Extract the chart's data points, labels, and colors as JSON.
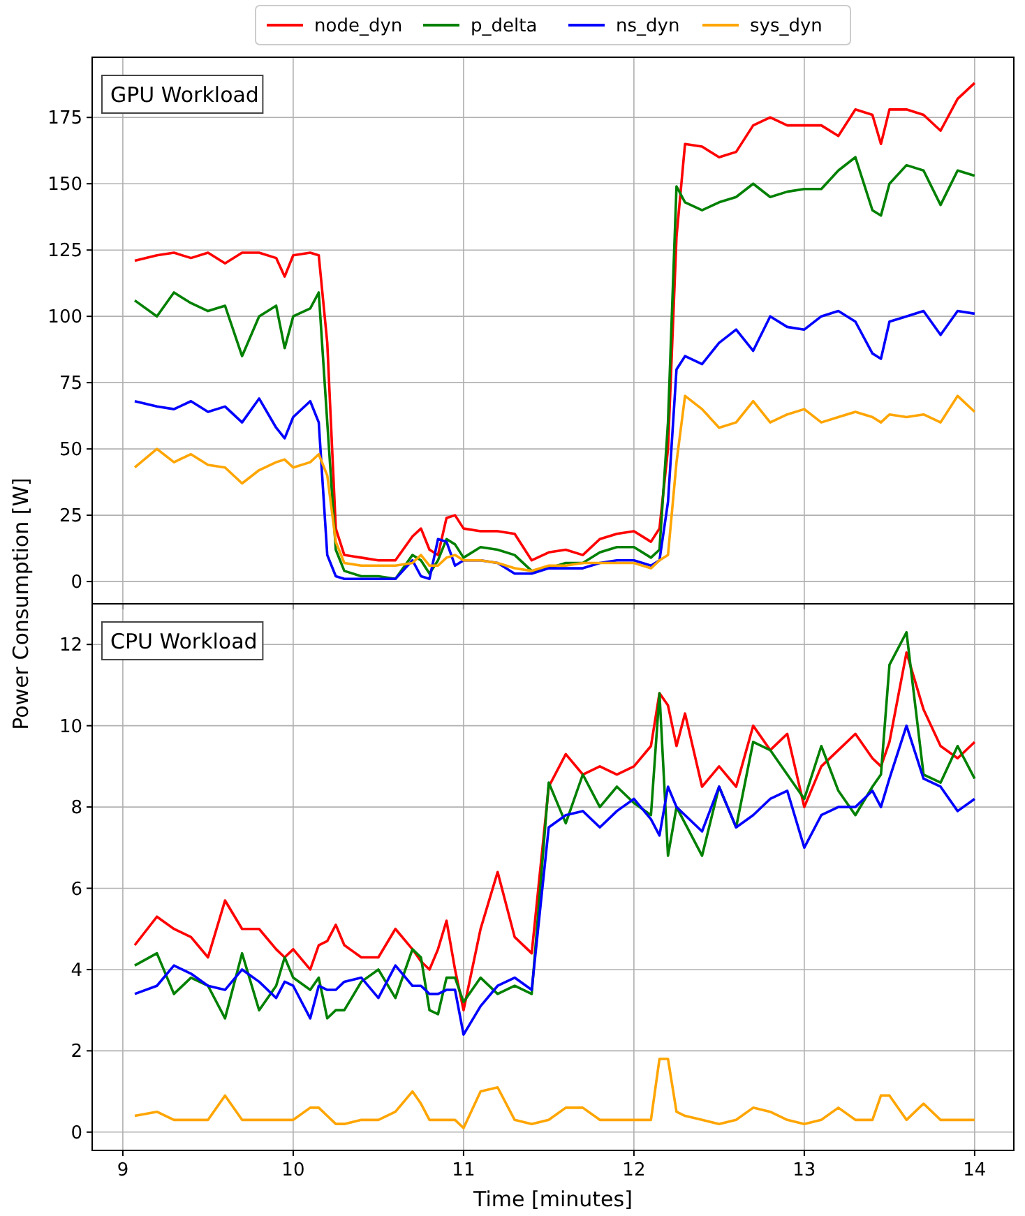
{
  "chart_data": [
    {
      "type": "line",
      "title": "GPU Workload",
      "ylabel": "Power Consumption [W]",
      "legend": "top",
      "grid": true,
      "tick_labels": "y",
      "line_style": "solid",
      "marker": "none",
      "x": [
        9.07,
        9.2,
        9.3,
        9.4,
        9.5,
        9.6,
        9.7,
        9.8,
        9.9,
        9.95,
        10.0,
        10.1,
        10.15,
        10.2,
        10.25,
        10.3,
        10.4,
        10.5,
        10.6,
        10.7,
        10.75,
        10.8,
        10.85,
        10.9,
        10.95,
        11.0,
        11.1,
        11.2,
        11.3,
        11.4,
        11.5,
        11.6,
        11.7,
        11.8,
        11.9,
        12.0,
        12.1,
        12.15,
        12.2,
        12.25,
        12.3,
        12.4,
        12.5,
        12.6,
        12.7,
        12.8,
        12.9,
        13.0,
        13.1,
        13.2,
        13.3,
        13.4,
        13.45,
        13.5,
        13.6,
        13.7,
        13.8,
        13.9,
        14.0
      ],
      "xlim": [
        8.82,
        14.23
      ],
      "xticks": [
        9,
        10,
        11,
        12,
        13,
        14
      ],
      "ylim": [
        -8.4,
        197.7
      ],
      "yticks": [
        0,
        25,
        50,
        75,
        100,
        125,
        150,
        175
      ],
      "series": [
        {
          "name": "node_dyn",
          "color": "#ff0000",
          "values": [
            121,
            123,
            124,
            122,
            124,
            120,
            124,
            124,
            122,
            115,
            123,
            124,
            123,
            90,
            20,
            10,
            9,
            8,
            8,
            17,
            20,
            12,
            10,
            24,
            25,
            20,
            19,
            19,
            18,
            8,
            11,
            12,
            10,
            16,
            18,
            19,
            15,
            20,
            50,
            130,
            165,
            164,
            160,
            162,
            172,
            175,
            172,
            172,
            172,
            168,
            178,
            176,
            165,
            178,
            178,
            176,
            170,
            182,
            188
          ]
        },
        {
          "name": "p_delta",
          "color": "#008000",
          "values": [
            106,
            100,
            109,
            105,
            102,
            104,
            85,
            100,
            104,
            88,
            100,
            103,
            109,
            60,
            12,
            4,
            2,
            2,
            1,
            10,
            8,
            3,
            8,
            16,
            14,
            9,
            13,
            12,
            10,
            4,
            5,
            7,
            7,
            11,
            13,
            13,
            9,
            12,
            60,
            149,
            143,
            140,
            143,
            145,
            150,
            145,
            147,
            148,
            148,
            155,
            160,
            140,
            138,
            150,
            157,
            155,
            142,
            155,
            153
          ]
        },
        {
          "name": "ns_dyn",
          "color": "#0000ff",
          "values": [
            68,
            66,
            65,
            68,
            64,
            66,
            60,
            69,
            58,
            54,
            62,
            68,
            60,
            10,
            2,
            1,
            1,
            1,
            1,
            8,
            2,
            1,
            16,
            15,
            6,
            8,
            8,
            7,
            3,
            3,
            5,
            5,
            5,
            7,
            8,
            8,
            6,
            8,
            30,
            80,
            85,
            82,
            90,
            95,
            87,
            100,
            96,
            95,
            100,
            102,
            98,
            86,
            84,
            98,
            100,
            102,
            93,
            102,
            101
          ]
        },
        {
          "name": "sys_dyn",
          "color": "#ffa500",
          "values": [
            43,
            50,
            45,
            48,
            44,
            43,
            37,
            42,
            45,
            46,
            43,
            45,
            48,
            40,
            15,
            7,
            6,
            6,
            6,
            7,
            10,
            6,
            6,
            9,
            10,
            8,
            8,
            7,
            5,
            4,
            6,
            6,
            7,
            7,
            7,
            7,
            5,
            8,
            10,
            45,
            70,
            65,
            58,
            60,
            68,
            60,
            63,
            65,
            60,
            62,
            64,
            62,
            60,
            63,
            62,
            63,
            60,
            70,
            64
          ]
        }
      ]
    },
    {
      "type": "line",
      "title": "CPU Workload",
      "xlabel": "Time [minutes]",
      "grid": true,
      "line_style": "solid",
      "marker": "none",
      "x": [
        9.07,
        9.2,
        9.3,
        9.4,
        9.5,
        9.6,
        9.7,
        9.8,
        9.9,
        9.95,
        10.0,
        10.1,
        10.15,
        10.2,
        10.25,
        10.3,
        10.4,
        10.5,
        10.6,
        10.7,
        10.75,
        10.8,
        10.85,
        10.9,
        10.95,
        11.0,
        11.1,
        11.2,
        11.3,
        11.4,
        11.5,
        11.6,
        11.7,
        11.8,
        11.9,
        12.0,
        12.1,
        12.15,
        12.2,
        12.25,
        12.3,
        12.4,
        12.5,
        12.6,
        12.7,
        12.8,
        12.9,
        13.0,
        13.1,
        13.2,
        13.3,
        13.4,
        13.45,
        13.5,
        13.6,
        13.7,
        13.8,
        13.9,
        14.0
      ],
      "xlim": [
        8.82,
        14.23
      ],
      "xticks": [
        9,
        10,
        11,
        12,
        13,
        14
      ],
      "ylim": [
        -0.45,
        13.0
      ],
      "yticks": [
        0,
        2,
        4,
        6,
        8,
        10,
        12
      ],
      "series": [
        {
          "color": "#ff0000",
          "values": [
            4.6,
            5.3,
            5.0,
            4.8,
            4.3,
            5.7,
            5.0,
            5.0,
            4.5,
            4.3,
            4.5,
            4.0,
            4.6,
            4.7,
            5.1,
            4.6,
            4.3,
            4.3,
            5.0,
            4.5,
            4.2,
            4.0,
            4.5,
            5.2,
            4.0,
            3.0,
            5.0,
            6.4,
            4.8,
            4.4,
            8.5,
            9.3,
            8.8,
            9.0,
            8.8,
            9.0,
            9.5,
            10.8,
            10.5,
            9.5,
            10.3,
            8.5,
            9.0,
            8.5,
            10.0,
            9.4,
            9.8,
            8.0,
            9.0,
            9.4,
            9.8,
            9.2,
            9.0,
            9.6,
            11.8,
            10.4,
            9.5,
            9.2,
            9.6
          ]
        },
        {
          "color": "#008000",
          "values": [
            4.1,
            4.4,
            3.4,
            3.8,
            3.6,
            2.8,
            4.4,
            3.0,
            3.6,
            4.3,
            3.8,
            3.5,
            3.8,
            2.8,
            3.0,
            3.0,
            3.7,
            4.0,
            3.3,
            4.5,
            4.3,
            3.0,
            2.9,
            3.8,
            3.8,
            3.2,
            3.8,
            3.4,
            3.6,
            3.4,
            8.6,
            7.6,
            8.8,
            8.0,
            8.5,
            8.1,
            7.8,
            10.8,
            6.8,
            8.0,
            7.6,
            6.8,
            8.5,
            7.5,
            9.6,
            9.4,
            8.8,
            8.2,
            9.5,
            8.4,
            7.8,
            8.5,
            8.8,
            11.5,
            12.3,
            8.8,
            8.6,
            9.5,
            8.7
          ]
        },
        {
          "color": "#0000ff",
          "values": [
            3.4,
            3.6,
            4.1,
            3.9,
            3.6,
            3.5,
            4.0,
            3.7,
            3.3,
            3.7,
            3.6,
            2.8,
            3.6,
            3.5,
            3.5,
            3.7,
            3.8,
            3.3,
            4.1,
            3.6,
            3.6,
            3.4,
            3.4,
            3.5,
            3.5,
            2.4,
            3.1,
            3.6,
            3.8,
            3.5,
            7.5,
            7.8,
            7.9,
            7.5,
            7.9,
            8.2,
            7.7,
            7.3,
            8.5,
            8.0,
            7.8,
            7.4,
            8.5,
            7.5,
            7.8,
            8.2,
            8.4,
            7.0,
            7.8,
            8.0,
            8.0,
            8.4,
            8.0,
            8.7,
            10.0,
            8.7,
            8.5,
            7.9,
            8.2
          ]
        },
        {
          "color": "#ffa500",
          "values": [
            0.4,
            0.5,
            0.3,
            0.3,
            0.3,
            0.9,
            0.3,
            0.3,
            0.3,
            0.3,
            0.3,
            0.6,
            0.6,
            0.4,
            0.2,
            0.2,
            0.3,
            0.3,
            0.5,
            1.0,
            0.7,
            0.3,
            0.3,
            0.3,
            0.3,
            0.1,
            1.0,
            1.1,
            0.3,
            0.2,
            0.3,
            0.6,
            0.6,
            0.3,
            0.3,
            0.3,
            0.3,
            1.8,
            1.8,
            0.5,
            0.4,
            0.3,
            0.2,
            0.3,
            0.6,
            0.5,
            0.3,
            0.2,
            0.3,
            0.6,
            0.3,
            0.3,
            0.9,
            0.9,
            0.3,
            0.7,
            0.3,
            0.3,
            0.3
          ]
        }
      ]
    }
  ]
}
